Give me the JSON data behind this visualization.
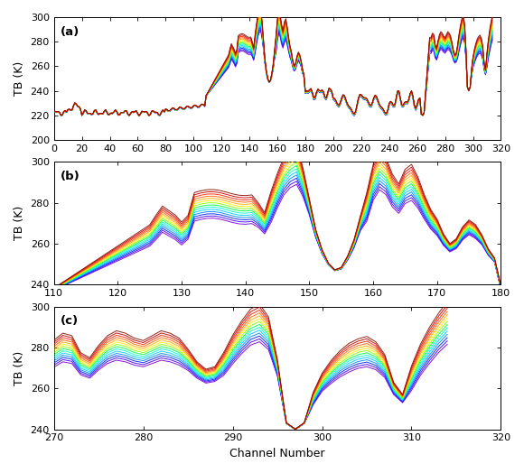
{
  "panel_a": {
    "label": "(a)",
    "xlim": [
      0,
      320
    ],
    "ylim": [
      200,
      300
    ],
    "xticks": [
      0,
      20,
      40,
      60,
      80,
      100,
      120,
      140,
      160,
      180,
      200,
      220,
      240,
      260,
      280,
      300,
      320
    ],
    "yticks": [
      200,
      220,
      240,
      260,
      280,
      300
    ]
  },
  "panel_b": {
    "label": "(b)",
    "xlim": [
      110,
      180
    ],
    "ylim": [
      240,
      300
    ],
    "xticks": [
      110,
      120,
      130,
      140,
      150,
      160,
      170,
      180
    ],
    "yticks": [
      240,
      260,
      280,
      300
    ]
  },
  "panel_c": {
    "label": "(c)",
    "xlim": [
      270,
      320
    ],
    "ylim": [
      240,
      300
    ],
    "xticks": [
      270,
      280,
      290,
      300,
      310,
      320
    ],
    "yticks": [
      240,
      260,
      280,
      300
    ]
  },
  "n_lines": 14,
  "ts_min": 270,
  "ts_max": 310,
  "ylabel": "TB (K)",
  "xlabel": "Channel Number",
  "tick_fontsize": 8,
  "label_fontsize": 9,
  "figsize": [
    5.8,
    5.24
  ],
  "dpi": 100
}
